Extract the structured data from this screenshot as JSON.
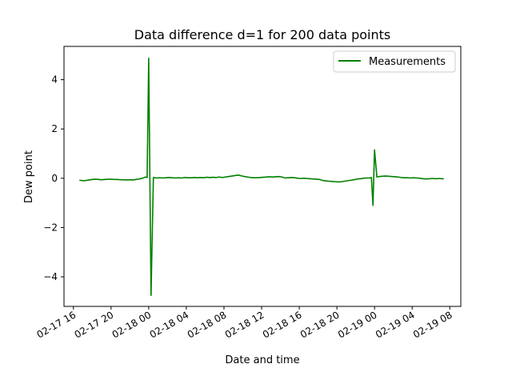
{
  "chart_data": {
    "type": "line",
    "title": "Data difference d=1 for 200 data points",
    "xlabel": "Date and time",
    "ylabel": "Dew point",
    "x_ticks": [
      "02-17 16",
      "02-17 20",
      "02-18 00",
      "02-18 04",
      "02-18 08",
      "02-18 12",
      "02-18 16",
      "02-18 20",
      "02-19 00",
      "02-19 04",
      "02-19 08"
    ],
    "y_ticks": [
      "−4",
      "−2",
      "0",
      "2",
      "4"
    ],
    "xlim": [
      "2021-02-17 15:00",
      "2021-02-19 09:10"
    ],
    "ylim": [
      -5.2,
      5.35
    ],
    "grid": false,
    "legend": {
      "position": "top-right"
    },
    "colors": {
      "series": "#008000"
    },
    "series": [
      {
        "name": "Measurements",
        "points": [
          [
            "2021-02-17 16:40",
            -0.08
          ],
          [
            "2021-02-17 17:00",
            -0.1
          ],
          [
            "2021-02-17 17:20",
            -0.09
          ],
          [
            "2021-02-17 17:40",
            -0.07
          ],
          [
            "2021-02-17 18:00",
            -0.05
          ],
          [
            "2021-02-17 18:20",
            -0.04
          ],
          [
            "2021-02-17 18:40",
            -0.05
          ],
          [
            "2021-02-17 19:00",
            -0.06
          ],
          [
            "2021-02-17 19:20",
            -0.05
          ],
          [
            "2021-02-17 19:40",
            -0.04
          ],
          [
            "2021-02-17 20:00",
            -0.04
          ],
          [
            "2021-02-17 20:20",
            -0.05
          ],
          [
            "2021-02-17 20:40",
            -0.05
          ],
          [
            "2021-02-17 21:00",
            -0.06
          ],
          [
            "2021-02-17 21:20",
            -0.06
          ],
          [
            "2021-02-17 21:40",
            -0.07
          ],
          [
            "2021-02-17 22:00",
            -0.06
          ],
          [
            "2021-02-17 22:20",
            -0.07
          ],
          [
            "2021-02-17 22:40",
            -0.05
          ],
          [
            "2021-02-17 23:00",
            -0.03
          ],
          [
            "2021-02-17 23:20",
            0.0
          ],
          [
            "2021-02-17 23:40",
            0.05
          ],
          [
            "2021-02-17 23:50",
            0.03
          ],
          [
            "2021-02-18 00:00",
            4.87
          ],
          [
            "2021-02-18 00:15",
            -4.75
          ],
          [
            "2021-02-18 00:30",
            0.03
          ],
          [
            "2021-02-18 00:50",
            0.01
          ],
          [
            "2021-02-18 01:10",
            0.02
          ],
          [
            "2021-02-18 01:30",
            0.01
          ],
          [
            "2021-02-18 01:50",
            0.02
          ],
          [
            "2021-02-18 02:10",
            0.03
          ],
          [
            "2021-02-18 02:30",
            0.02
          ],
          [
            "2021-02-18 02:50",
            0.01
          ],
          [
            "2021-02-18 03:10",
            0.02
          ],
          [
            "2021-02-18 03:30",
            0.01
          ],
          [
            "2021-02-18 03:50",
            0.03
          ],
          [
            "2021-02-18 04:10",
            0.02
          ],
          [
            "2021-02-18 04:30",
            0.02
          ],
          [
            "2021-02-18 04:50",
            0.03
          ],
          [
            "2021-02-18 05:10",
            0.02
          ],
          [
            "2021-02-18 05:30",
            0.03
          ],
          [
            "2021-02-18 05:50",
            0.02
          ],
          [
            "2021-02-18 06:10",
            0.04
          ],
          [
            "2021-02-18 06:30",
            0.03
          ],
          [
            "2021-02-18 06:50",
            0.04
          ],
          [
            "2021-02-18 07:10",
            0.03
          ],
          [
            "2021-02-18 07:30",
            0.05
          ],
          [
            "2021-02-18 07:50",
            0.03
          ],
          [
            "2021-02-18 08:10",
            0.05
          ],
          [
            "2021-02-18 08:30",
            0.07
          ],
          [
            "2021-02-18 08:50",
            0.09
          ],
          [
            "2021-02-18 09:10",
            0.11
          ],
          [
            "2021-02-18 09:30",
            0.13
          ],
          [
            "2021-02-18 09:50",
            0.1
          ],
          [
            "2021-02-18 10:10",
            0.07
          ],
          [
            "2021-02-18 10:30",
            0.05
          ],
          [
            "2021-02-18 10:50",
            0.03
          ],
          [
            "2021-02-18 11:10",
            0.02
          ],
          [
            "2021-02-18 11:30",
            0.02
          ],
          [
            "2021-02-18 11:50",
            0.03
          ],
          [
            "2021-02-18 12:10",
            0.04
          ],
          [
            "2021-02-18 12:30",
            0.05
          ],
          [
            "2021-02-18 12:50",
            0.06
          ],
          [
            "2021-02-18 13:10",
            0.05
          ],
          [
            "2021-02-18 13:30",
            0.06
          ],
          [
            "2021-02-18 13:50",
            0.07
          ],
          [
            "2021-02-18 14:10",
            0.05
          ],
          [
            "2021-02-18 14:30",
            0.01
          ],
          [
            "2021-02-18 14:50",
            0.02
          ],
          [
            "2021-02-18 15:10",
            0.03
          ],
          [
            "2021-02-18 15:30",
            0.02
          ],
          [
            "2021-02-18 15:50",
            0.0
          ],
          [
            "2021-02-18 16:10",
            -0.01
          ],
          [
            "2021-02-18 16:30",
            0.0
          ],
          [
            "2021-02-18 16:50",
            -0.01
          ],
          [
            "2021-02-18 17:10",
            -0.02
          ],
          [
            "2021-02-18 17:30",
            -0.03
          ],
          [
            "2021-02-18 17:50",
            -0.04
          ],
          [
            "2021-02-18 18:10",
            -0.05
          ],
          [
            "2021-02-18 18:30",
            -0.09
          ],
          [
            "2021-02-18 18:50",
            -0.11
          ],
          [
            "2021-02-18 19:10",
            -0.12
          ],
          [
            "2021-02-18 19:30",
            -0.13
          ],
          [
            "2021-02-18 19:50",
            -0.14
          ],
          [
            "2021-02-18 20:10",
            -0.15
          ],
          [
            "2021-02-18 20:30",
            -0.14
          ],
          [
            "2021-02-18 20:50",
            -0.12
          ],
          [
            "2021-02-18 21:10",
            -0.1
          ],
          [
            "2021-02-18 21:30",
            -0.08
          ],
          [
            "2021-02-18 21:50",
            -0.06
          ],
          [
            "2021-02-18 22:10",
            -0.03
          ],
          [
            "2021-02-18 22:30",
            -0.02
          ],
          [
            "2021-02-18 22:50",
            0.0
          ],
          [
            "2021-02-18 23:10",
            0.01
          ],
          [
            "2021-02-18 23:30",
            0.01
          ],
          [
            "2021-02-18 23:40",
            0.03
          ],
          [
            "2021-02-18 23:50",
            -1.1
          ],
          [
            "2021-02-19 00:00",
            1.15
          ],
          [
            "2021-02-19 00:15",
            0.05
          ],
          [
            "2021-02-19 00:30",
            0.07
          ],
          [
            "2021-02-19 00:50",
            0.08
          ],
          [
            "2021-02-19 01:10",
            0.09
          ],
          [
            "2021-02-19 01:30",
            0.08
          ],
          [
            "2021-02-19 01:50",
            0.07
          ],
          [
            "2021-02-19 02:10",
            0.06
          ],
          [
            "2021-02-19 02:30",
            0.05
          ],
          [
            "2021-02-19 02:50",
            0.03
          ],
          [
            "2021-02-19 03:10",
            0.02
          ],
          [
            "2021-02-19 03:30",
            0.02
          ],
          [
            "2021-02-19 03:50",
            0.01
          ],
          [
            "2021-02-19 04:10",
            0.02
          ],
          [
            "2021-02-19 04:30",
            0.01
          ],
          [
            "2021-02-19 04:50",
            0.0
          ],
          [
            "2021-02-19 05:10",
            -0.02
          ],
          [
            "2021-02-19 05:30",
            -0.03
          ],
          [
            "2021-02-19 05:50",
            -0.02
          ],
          [
            "2021-02-19 06:10",
            -0.01
          ],
          [
            "2021-02-19 06:30",
            -0.02
          ],
          [
            "2021-02-19 06:50",
            -0.01
          ],
          [
            "2021-02-19 07:10",
            -0.02
          ],
          [
            "2021-02-19 07:20",
            -0.02
          ]
        ]
      }
    ]
  }
}
